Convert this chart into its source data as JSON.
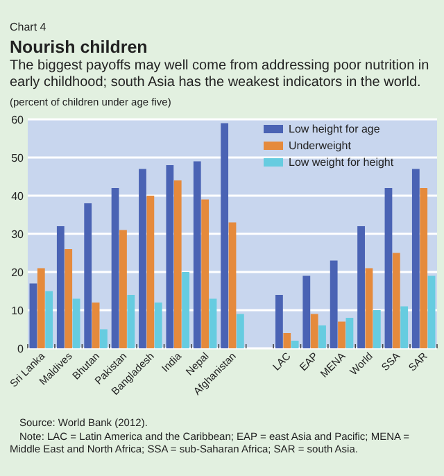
{
  "chart_data": {
    "type": "bar",
    "title": "Nourish children",
    "subtitle": "The biggest payoffs may well come from addressing poor nutrition in early childhood; south Asia has the weakest indicators in the world.",
    "ylabel": "(percent of children under age five)",
    "annotations": [
      "Chart 4",
      "Source: World Bank (2012).",
      "Note: LAC = Latin America and the Caribbean; EAP = east Asia and Pacific; MENA = Middle East and North Africa; SSA = sub-Saharan Africa; SAR = south Asia."
    ],
    "categories": [
      "Sri Lanka",
      "Maldives",
      "Bhutan",
      "Pakistan",
      "Bangladesh",
      "India",
      "Nepal",
      "Afghanistan",
      null,
      "LAC",
      "EAP",
      "MENA",
      "World",
      "SSA",
      "SAR"
    ],
    "series": [
      {
        "name": "Low height for age",
        "color": "#4a63b4",
        "values": [
          17,
          32,
          38,
          42,
          47,
          48,
          49,
          59,
          null,
          14,
          19,
          23,
          32,
          42,
          47
        ]
      },
      {
        "name": "Underweight",
        "color": "#e58a3c",
        "values": [
          21,
          26,
          12,
          31,
          40,
          44,
          39,
          33,
          null,
          4,
          9,
          7,
          21,
          25,
          42
        ]
      },
      {
        "name": "Low weight for height",
        "color": "#66cce0",
        "values": [
          15,
          13,
          5,
          14,
          12,
          20,
          13,
          9,
          null,
          2,
          6,
          8,
          10,
          11,
          19
        ]
      }
    ],
    "ylim": [
      0,
      60
    ],
    "yticks": [
      0,
      10,
      20,
      30,
      40,
      50,
      60
    ],
    "grid": "y",
    "legend": "top right"
  }
}
